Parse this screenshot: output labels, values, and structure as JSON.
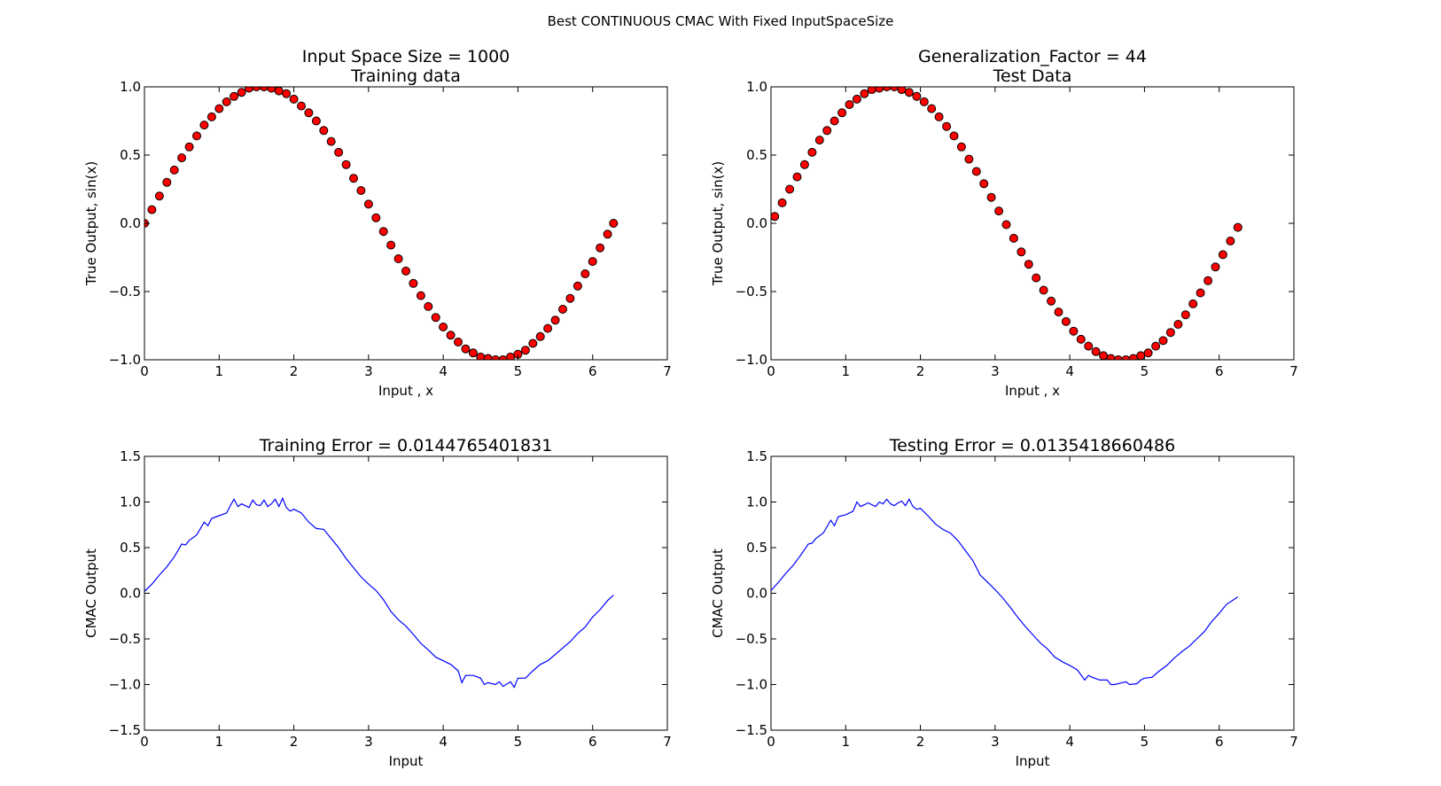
{
  "figure_title": "Best CONTINUOUS CMAC With Fixed InputSpaceSize",
  "colors": {
    "scatter_fill": "#ff0000",
    "scatter_edge": "#000000",
    "line": "#0000ff",
    "axes": "#000000",
    "background": "#ffffff"
  },
  "chart_data": [
    {
      "type": "scatter",
      "title": [
        "Input Space Size = 1000",
        "Training data"
      ],
      "xlabel": "Input , x",
      "ylabel": "True Output, sin(x)",
      "xlim": [
        0,
        7
      ],
      "ylim": [
        -1.0,
        1.0
      ],
      "xticks": [
        "0",
        "1",
        "2",
        "3",
        "4",
        "5",
        "6",
        "7"
      ],
      "yticks": [
        "1.0",
        "0.5",
        "0.0",
        "−0.5",
        "−1.0"
      ],
      "grid": false,
      "series": [
        {
          "x": [
            0.0,
            0.1,
            0.2,
            0.3,
            0.4,
            0.5,
            0.6,
            0.7,
            0.8,
            0.9,
            1.0,
            1.1,
            1.2,
            1.3,
            1.4,
            1.5,
            1.6,
            1.7,
            1.8,
            1.9,
            2.0,
            2.1,
            2.2,
            2.3,
            2.4,
            2.5,
            2.6,
            2.7,
            2.8,
            2.9,
            3.0,
            3.1,
            3.2,
            3.3,
            3.4,
            3.5,
            3.6,
            3.7,
            3.8,
            3.9,
            4.0,
            4.1,
            4.2,
            4.3,
            4.4,
            4.5,
            4.6,
            4.7,
            4.8,
            4.9,
            5.0,
            5.1,
            5.2,
            5.3,
            5.4,
            5.5,
            5.6,
            5.7,
            5.8,
            5.9,
            6.0,
            6.1,
            6.2,
            6.28
          ],
          "y": [
            0.0,
            0.1,
            0.2,
            0.3,
            0.39,
            0.48,
            0.56,
            0.64,
            0.72,
            0.78,
            0.84,
            0.89,
            0.93,
            0.96,
            0.99,
            1.0,
            1.0,
            0.99,
            0.97,
            0.95,
            0.91,
            0.86,
            0.81,
            0.75,
            0.68,
            0.6,
            0.52,
            0.43,
            0.33,
            0.24,
            0.14,
            0.04,
            -0.06,
            -0.16,
            -0.26,
            -0.35,
            -0.44,
            -0.53,
            -0.61,
            -0.69,
            -0.76,
            -0.82,
            -0.87,
            -0.92,
            -0.95,
            -0.98,
            -0.99,
            -1.0,
            -1.0,
            -0.98,
            -0.96,
            -0.93,
            -0.88,
            -0.83,
            -0.77,
            -0.71,
            -0.63,
            -0.55,
            -0.46,
            -0.37,
            -0.28,
            -0.18,
            -0.08,
            0.0
          ]
        }
      ]
    },
    {
      "type": "scatter",
      "title": [
        "Generalization_Factor = 44",
        "Test Data"
      ],
      "xlabel": "Input , x",
      "ylabel": "True Output, sin(x)",
      "xlim": [
        0,
        7
      ],
      "ylim": [
        -1.0,
        1.0
      ],
      "xticks": [
        "0",
        "1",
        "2",
        "3",
        "4",
        "5",
        "6",
        "7"
      ],
      "yticks": [
        "1.0",
        "0.5",
        "0.0",
        "−0.5",
        "−1.0"
      ],
      "grid": false,
      "series": [
        {
          "x": [
            0.05,
            0.15,
            0.25,
            0.35,
            0.45,
            0.55,
            0.65,
            0.75,
            0.85,
            0.95,
            1.05,
            1.15,
            1.25,
            1.35,
            1.45,
            1.55,
            1.65,
            1.75,
            1.85,
            1.95,
            2.05,
            2.15,
            2.25,
            2.35,
            2.45,
            2.55,
            2.65,
            2.75,
            2.85,
            2.95,
            3.05,
            3.15,
            3.25,
            3.35,
            3.45,
            3.55,
            3.65,
            3.75,
            3.85,
            3.95,
            4.05,
            4.15,
            4.25,
            4.35,
            4.45,
            4.55,
            4.65,
            4.75,
            4.85,
            4.95,
            5.05,
            5.15,
            5.25,
            5.35,
            5.45,
            5.55,
            5.65,
            5.75,
            5.85,
            5.95,
            6.05,
            6.15,
            6.25
          ],
          "y": [
            0.05,
            0.15,
            0.25,
            0.34,
            0.43,
            0.52,
            0.61,
            0.68,
            0.75,
            0.81,
            0.87,
            0.91,
            0.95,
            0.98,
            0.99,
            1.0,
            1.0,
            0.98,
            0.96,
            0.93,
            0.89,
            0.84,
            0.78,
            0.71,
            0.64,
            0.56,
            0.47,
            0.38,
            0.29,
            0.19,
            0.09,
            -0.01,
            -0.11,
            -0.21,
            -0.3,
            -0.4,
            -0.49,
            -0.57,
            -0.65,
            -0.72,
            -0.79,
            -0.85,
            -0.9,
            -0.94,
            -0.97,
            -0.99,
            -1.0,
            -1.0,
            -0.99,
            -0.97,
            -0.95,
            -0.9,
            -0.86,
            -0.8,
            -0.74,
            -0.67,
            -0.59,
            -0.51,
            -0.42,
            -0.32,
            -0.23,
            -0.13,
            -0.03
          ]
        }
      ]
    },
    {
      "type": "line",
      "title": [
        "Training Error = 0.0144765401831"
      ],
      "xlabel": "Input",
      "ylabel": "CMAC Output",
      "xlim": [
        0,
        7
      ],
      "ylim": [
        -1.5,
        1.5
      ],
      "xticks": [
        "0",
        "1",
        "2",
        "3",
        "4",
        "5",
        "6",
        "7"
      ],
      "yticks": [
        "1.5",
        "1.0",
        "0.5",
        "0.0",
        "−0.5",
        "−1.0",
        "−1.5"
      ],
      "grid": false,
      "series": [
        {
          "x": [
            0.0,
            0.1,
            0.2,
            0.3,
            0.4,
            0.5,
            0.55,
            0.6,
            0.7,
            0.8,
            0.85,
            0.9,
            1.0,
            1.1,
            1.15,
            1.2,
            1.25,
            1.3,
            1.4,
            1.45,
            1.5,
            1.55,
            1.6,
            1.65,
            1.7,
            1.75,
            1.8,
            1.85,
            1.9,
            1.95,
            2.0,
            2.1,
            2.2,
            2.3,
            2.4,
            2.5,
            2.6,
            2.7,
            2.8,
            2.9,
            3.0,
            3.1,
            3.2,
            3.3,
            3.4,
            3.5,
            3.6,
            3.7,
            3.8,
            3.9,
            4.0,
            4.1,
            4.2,
            4.25,
            4.3,
            4.4,
            4.5,
            4.55,
            4.6,
            4.7,
            4.75,
            4.8,
            4.9,
            4.95,
            5.0,
            5.1,
            5.2,
            5.3,
            5.4,
            5.5,
            5.6,
            5.7,
            5.8,
            5.9,
            6.0,
            6.1,
            6.2,
            6.28
          ],
          "y": [
            0.02,
            0.1,
            0.2,
            0.29,
            0.4,
            0.54,
            0.53,
            0.58,
            0.64,
            0.78,
            0.74,
            0.82,
            0.85,
            0.88,
            0.96,
            1.03,
            0.95,
            0.98,
            0.94,
            1.02,
            0.97,
            0.96,
            1.02,
            0.95,
            0.98,
            1.03,
            0.95,
            1.04,
            0.94,
            0.9,
            0.92,
            0.88,
            0.78,
            0.71,
            0.7,
            0.6,
            0.5,
            0.38,
            0.28,
            0.18,
            0.1,
            0.03,
            -0.07,
            -0.2,
            -0.29,
            -0.36,
            -0.45,
            -0.55,
            -0.62,
            -0.7,
            -0.74,
            -0.78,
            -0.85,
            -0.98,
            -0.9,
            -0.9,
            -0.93,
            -1.0,
            -0.98,
            -1.0,
            -0.97,
            -1.02,
            -0.97,
            -1.03,
            -0.93,
            -0.93,
            -0.85,
            -0.78,
            -0.74,
            -0.67,
            -0.6,
            -0.53,
            -0.44,
            -0.37,
            -0.26,
            -0.18,
            -0.08,
            -0.02
          ]
        }
      ]
    },
    {
      "type": "line",
      "title": [
        "Testing Error = 0.0135418660486"
      ],
      "xlabel": "Input",
      "ylabel": "CMAC Output",
      "xlim": [
        0,
        7
      ],
      "ylim": [
        -1.5,
        1.5
      ],
      "xticks": [
        "0",
        "1",
        "2",
        "3",
        "4",
        "5",
        "6",
        "7"
      ],
      "yticks": [
        "1.5",
        "1.0",
        "0.5",
        "0.0",
        "−0.5",
        "−1.0",
        "−1.5"
      ],
      "grid": false,
      "series": [
        {
          "x": [
            0.0,
            0.1,
            0.2,
            0.3,
            0.4,
            0.5,
            0.55,
            0.6,
            0.7,
            0.8,
            0.85,
            0.9,
            1.0,
            1.1,
            1.15,
            1.2,
            1.25,
            1.3,
            1.4,
            1.45,
            1.5,
            1.55,
            1.6,
            1.65,
            1.7,
            1.75,
            1.8,
            1.85,
            1.9,
            1.95,
            2.0,
            2.1,
            2.2,
            2.3,
            2.4,
            2.5,
            2.6,
            2.7,
            2.8,
            2.9,
            3.0,
            3.1,
            3.2,
            3.3,
            3.4,
            3.5,
            3.6,
            3.7,
            3.8,
            3.9,
            4.0,
            4.1,
            4.2,
            4.25,
            4.3,
            4.4,
            4.5,
            4.55,
            4.6,
            4.7,
            4.75,
            4.8,
            4.9,
            4.95,
            5.0,
            5.1,
            5.2,
            5.3,
            5.4,
            5.5,
            5.6,
            5.7,
            5.8,
            5.9,
            6.0,
            6.1,
            6.25
          ],
          "y": [
            0.03,
            0.12,
            0.22,
            0.31,
            0.42,
            0.54,
            0.55,
            0.6,
            0.66,
            0.8,
            0.74,
            0.84,
            0.86,
            0.9,
            1.0,
            0.95,
            0.97,
            0.99,
            0.95,
            1.0,
            0.98,
            1.03,
            0.98,
            0.96,
            0.99,
            1.01,
            0.96,
            1.03,
            0.95,
            0.92,
            0.93,
            0.85,
            0.76,
            0.7,
            0.66,
            0.58,
            0.47,
            0.36,
            0.2,
            0.12,
            0.04,
            -0.05,
            -0.15,
            -0.26,
            -0.36,
            -0.45,
            -0.54,
            -0.61,
            -0.7,
            -0.75,
            -0.79,
            -0.84,
            -0.95,
            -0.9,
            -0.92,
            -0.95,
            -0.95,
            -1.0,
            -1.0,
            -0.98,
            -0.97,
            -1.0,
            -0.99,
            -0.95,
            -0.93,
            -0.92,
            -0.85,
            -0.79,
            -0.71,
            -0.64,
            -0.58,
            -0.5,
            -0.42,
            -0.31,
            -0.22,
            -0.12,
            -0.04
          ]
        }
      ]
    }
  ]
}
